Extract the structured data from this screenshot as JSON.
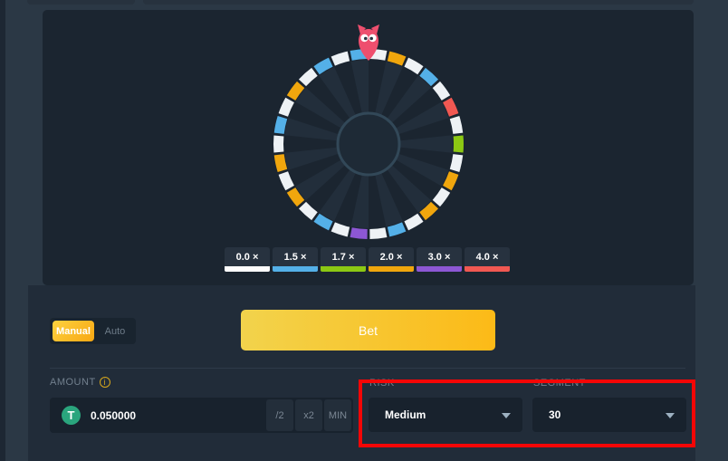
{
  "theme": {
    "page_bg": "#2b3845",
    "wheel_panel_bg": "#1b2530",
    "controls_panel_bg": "#212c39",
    "field_bg": "#18222d",
    "accent_yellow": "#fbb917",
    "annotation_red": "#f40606"
  },
  "wheel": {
    "segment_count": 30,
    "pointer_icon": "owl-pointer-icon",
    "pointer_color": "#ee4f6e",
    "segments": [
      "white",
      "orange",
      "white",
      "blue",
      "white",
      "red",
      "white",
      "green",
      "white",
      "orange",
      "white",
      "orange",
      "white",
      "blue",
      "white",
      "purple",
      "white",
      "blue",
      "white",
      "orange",
      "white",
      "orange",
      "white",
      "blue",
      "white",
      "orange",
      "white",
      "blue",
      "white",
      "blue"
    ],
    "colors": {
      "white": "#eef2f5",
      "blue": "#54b0e8",
      "green": "#8cc813",
      "orange": "#f0a60d",
      "purple": "#8d57d4",
      "red": "#f15852"
    },
    "multiplier_by_color": {
      "white": "0.0",
      "blue": "1.5",
      "green": "1.7",
      "orange": "2.0",
      "purple": "3.0",
      "red": "4.0"
    },
    "spoke_light": "#222e3b",
    "hub_stroke": "#324858",
    "hub_fill": "#1e2a36"
  },
  "legend": {
    "buttons": [
      {
        "label": "0.0 ×",
        "color": "#fdfdfd"
      },
      {
        "label": "1.5 ×",
        "color": "#54b0e8"
      },
      {
        "label": "1.7 ×",
        "color": "#8cc813"
      },
      {
        "label": "2.0 ×",
        "color": "#f0a60d"
      },
      {
        "label": "3.0 ×",
        "color": "#8d57d4"
      },
      {
        "label": "4.0 ×",
        "color": "#f15852"
      }
    ]
  },
  "bet_mode": {
    "manual_label": "Manual",
    "auto_label": "Auto",
    "selected": "Manual"
  },
  "bet_button": {
    "label": "Bet"
  },
  "amount": {
    "label": "AMOUNT",
    "info_glyph": "i",
    "currency_symbol": "T",
    "value": "0.050000",
    "half_label": "/2",
    "double_label": "x2",
    "min_label": "MIN"
  },
  "risk": {
    "label": "RISK",
    "value": "Medium"
  },
  "segment": {
    "label": "SEGMENT",
    "value": "30"
  }
}
